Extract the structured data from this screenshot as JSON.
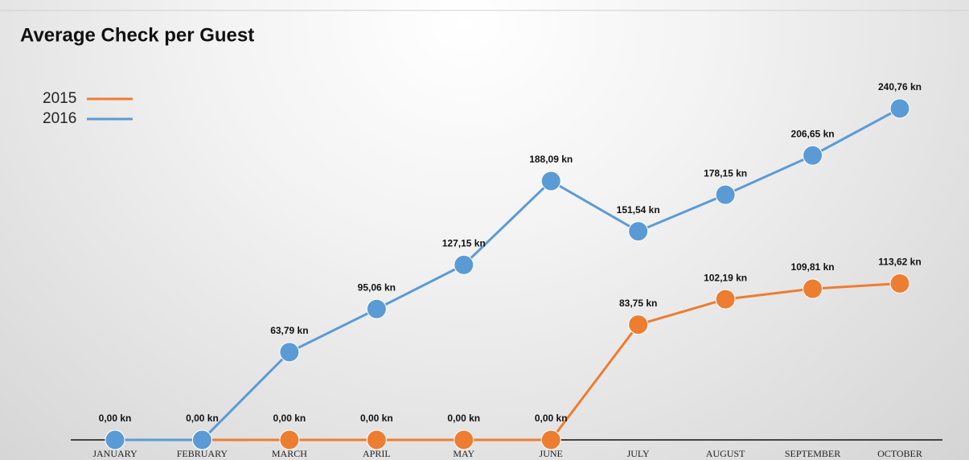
{
  "chart_data": {
    "type": "line",
    "title": "Average Check per Guest",
    "categories": [
      "JANUARY",
      "FEBRUARY",
      "MARCH",
      "APRIL",
      "MAY",
      "JUNE",
      "JULY",
      "AUGUST",
      "SEPTEMBER",
      "OCTOBER"
    ],
    "series": [
      {
        "name": "2015",
        "color": "#ed7d31",
        "values": [
          0,
          0,
          0,
          0,
          0,
          0,
          83.75,
          102.19,
          109.81,
          113.62
        ],
        "value_labels": [
          null,
          null,
          "0,00 kn",
          "0,00 kn",
          "0,00 kn",
          "0,00 kn",
          "83,75 kn",
          "102,19 kn",
          "109,81 kn",
          "113,62 kn"
        ]
      },
      {
        "name": "2016",
        "color": "#5b9bd5",
        "values": [
          0,
          0,
          63.79,
          95.06,
          127.15,
          188.09,
          151.54,
          178.15,
          206.65,
          240.76
        ],
        "value_labels": [
          "0,00 kn",
          "0,00 kn",
          "63,79 kn",
          "95,06 kn",
          "127,15 kn",
          "188,09 kn",
          "151,54 kn",
          "178,15 kn",
          "206,65 kn",
          "240,76 kn"
        ]
      }
    ],
    "ylim": [
      0,
      260
    ],
    "legend": "top-left"
  }
}
